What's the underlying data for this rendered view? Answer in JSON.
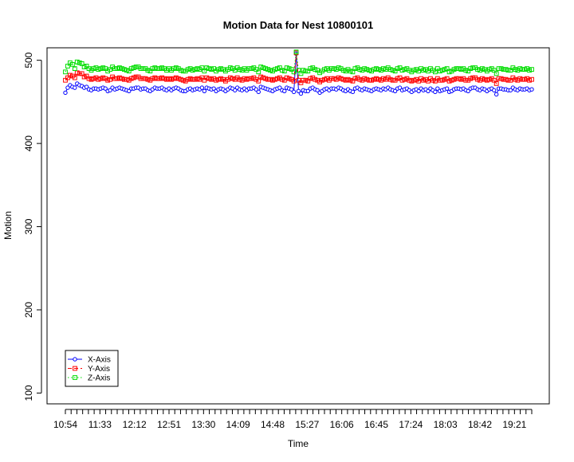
{
  "chart_data": {
    "type": "line",
    "title": "Motion Data for Nest 10800101",
    "xlabel": "Time",
    "ylabel": "Motion",
    "ylim": [
      87,
      515
    ],
    "y_ticks": [
      100,
      200,
      300,
      400,
      500
    ],
    "x_tick_labels": [
      "10:54",
      "11:33",
      "12:12",
      "12:51",
      "13:30",
      "14:09",
      "14:48",
      "15:27",
      "16:06",
      "16:45",
      "17:24",
      "18:03",
      "18:42",
      "19:21"
    ],
    "x_minor_ticks_per_label": 6,
    "legend_position": "bottom-left",
    "series": [
      {
        "name": "X-Axis",
        "color": "#0000ff",
        "marker": "circle",
        "line_style": "solid",
        "values": [
          461,
          467,
          470,
          468,
          467,
          472,
          470,
          469,
          467,
          468,
          465,
          464,
          466,
          466,
          465,
          466,
          467,
          466,
          463,
          464,
          467,
          465,
          466,
          467,
          466,
          465,
          464,
          463,
          466,
          466,
          467,
          467,
          465,
          466,
          466,
          464,
          463,
          465,
          467,
          466,
          466,
          467,
          465,
          464,
          466,
          464,
          466,
          467,
          466,
          464,
          463,
          463,
          465,
          466,
          464,
          465,
          466,
          465,
          467,
          463,
          467,
          466,
          465,
          466,
          463,
          465,
          466,
          465,
          463,
          465,
          467,
          466,
          464,
          467,
          465,
          464,
          466,
          464,
          466,
          466,
          467,
          465,
          462,
          468,
          467,
          466,
          465,
          464,
          463,
          465,
          466,
          467,
          464,
          463,
          467,
          466,
          465,
          462,
          508,
          463,
          460,
          464,
          463,
          463,
          466,
          467,
          465,
          464,
          461,
          463,
          465,
          466,
          464,
          466,
          466,
          465,
          467,
          466,
          464,
          463,
          465,
          463,
          462,
          466,
          467,
          465,
          464,
          466,
          465,
          464,
          463,
          465,
          466,
          465,
          464,
          466,
          465,
          467,
          465,
          464,
          463,
          466,
          467,
          464,
          465,
          466,
          464,
          462,
          464,
          465,
          463,
          466,
          464,
          465,
          463,
          466,
          464,
          462,
          466,
          463,
          464,
          465,
          466,
          462,
          463,
          465,
          466,
          466,
          465,
          466,
          464,
          463,
          466,
          467,
          467,
          465,
          464,
          466,
          465,
          463,
          465,
          466,
          464,
          459,
          466,
          466,
          465,
          465,
          464,
          464,
          467,
          465,
          464,
          466,
          465,
          465,
          466,
          464,
          465
        ]
      },
      {
        "name": "Y-Axis",
        "color": "#ff0000",
        "marker": "square",
        "line_style": "dashed",
        "values": [
          476,
          479,
          482,
          481,
          479,
          485,
          484,
          484,
          480,
          481,
          478,
          477,
          478,
          479,
          477,
          478,
          479,
          478,
          476,
          477,
          480,
          478,
          478,
          479,
          478,
          477,
          477,
          476,
          478,
          479,
          480,
          480,
          478,
          478,
          478,
          477,
          476,
          478,
          479,
          478,
          478,
          479,
          478,
          477,
          478,
          477,
          478,
          479,
          478,
          477,
          476,
          475,
          477,
          478,
          477,
          477,
          478,
          477,
          479,
          476,
          479,
          478,
          477,
          478,
          476,
          477,
          478,
          477,
          475,
          477,
          479,
          478,
          477,
          479,
          477,
          476,
          478,
          477,
          478,
          478,
          479,
          477,
          475,
          480,
          479,
          478,
          477,
          477,
          476,
          477,
          478,
          479,
          477,
          476,
          479,
          478,
          477,
          475,
          509,
          476,
          473,
          476,
          476,
          475,
          478,
          479,
          477,
          476,
          474,
          476,
          477,
          478,
          476,
          478,
          478,
          477,
          479,
          478,
          477,
          476,
          477,
          476,
          475,
          478,
          479,
          477,
          476,
          478,
          477,
          476,
          476,
          477,
          478,
          477,
          476,
          478,
          477,
          479,
          477,
          476,
          476,
          478,
          479,
          476,
          477,
          478,
          476,
          475,
          476,
          477,
          475,
          478,
          476,
          477,
          475,
          478,
          476,
          475,
          478,
          476,
          476,
          477,
          478,
          475,
          476,
          477,
          478,
          478,
          477,
          478,
          476,
          476,
          478,
          479,
          479,
          477,
          476,
          478,
          477,
          476,
          477,
          478,
          476,
          472,
          478,
          478,
          477,
          477,
          476,
          476,
          479,
          477,
          476,
          478,
          477,
          477,
          478,
          476,
          477
        ]
      },
      {
        "name": "Z-Axis",
        "color": "#00dd00",
        "marker": "square",
        "line_style": "dotted",
        "values": [
          486,
          493,
          497,
          495,
          490,
          498,
          497,
          496,
          492,
          493,
          490,
          488,
          490,
          491,
          489,
          490,
          491,
          490,
          487,
          489,
          492,
          490,
          490,
          491,
          490,
          489,
          488,
          487,
          490,
          491,
          492,
          492,
          490,
          490,
          490,
          488,
          487,
          490,
          491,
          490,
          490,
          491,
          490,
          488,
          490,
          488,
          490,
          491,
          490,
          488,
          487,
          487,
          489,
          490,
          488,
          489,
          490,
          489,
          491,
          487,
          491,
          490,
          489,
          490,
          487,
          489,
          490,
          489,
          487,
          489,
          491,
          490,
          488,
          491,
          489,
          488,
          490,
          488,
          490,
          490,
          491,
          489,
          486,
          492,
          491,
          490,
          489,
          488,
          487,
          489,
          490,
          491,
          488,
          487,
          491,
          490,
          489,
          486,
          510,
          488,
          484,
          488,
          487,
          487,
          490,
          491,
          489,
          488,
          485,
          487,
          489,
          490,
          488,
          490,
          490,
          489,
          491,
          490,
          488,
          487,
          489,
          487,
          486,
          490,
          491,
          489,
          488,
          490,
          489,
          488,
          487,
          489,
          490,
          489,
          488,
          490,
          489,
          491,
          489,
          488,
          487,
          490,
          491,
          488,
          489,
          490,
          488,
          486,
          488,
          489,
          487,
          490,
          488,
          489,
          487,
          490,
          488,
          486,
          490,
          487,
          488,
          489,
          490,
          486,
          487,
          489,
          490,
          490,
          489,
          490,
          488,
          487,
          490,
          491,
          491,
          489,
          488,
          490,
          489,
          487,
          489,
          490,
          488,
          484,
          490,
          490,
          489,
          489,
          488,
          488,
          491,
          489,
          488,
          490,
          489,
          489,
          490,
          488,
          489
        ]
      }
    ]
  }
}
